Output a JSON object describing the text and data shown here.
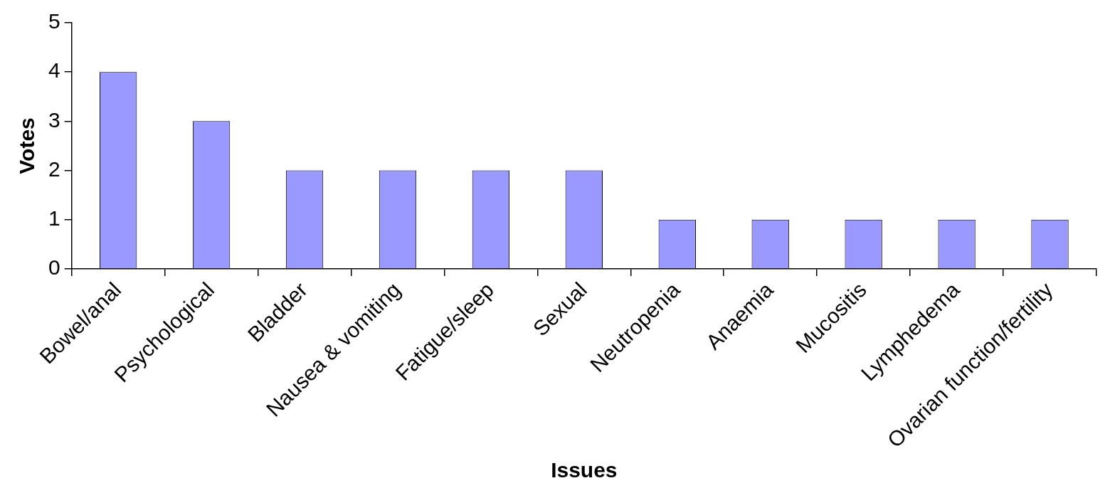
{
  "chart_data": {
    "type": "bar",
    "xlabel": "Issues",
    "ylabel": "Votes",
    "categories": [
      "Bowel/anal",
      "Psychological",
      "Bladder",
      "Nausea & vomiting",
      "Fatigue/sleep",
      "Sexual",
      "Neutropenia",
      "Anaemia",
      "Mucositis",
      "Lymphedema",
      "Ovarian function/fertility"
    ],
    "values": [
      4,
      3,
      2,
      2,
      2,
      2,
      1,
      1,
      1,
      1,
      1
    ],
    "color": "#9999ff",
    "ylim": [
      0,
      5
    ],
    "yticks": [
      0,
      1,
      2,
      3,
      4,
      5
    ],
    "grid": false,
    "legend": false
  }
}
